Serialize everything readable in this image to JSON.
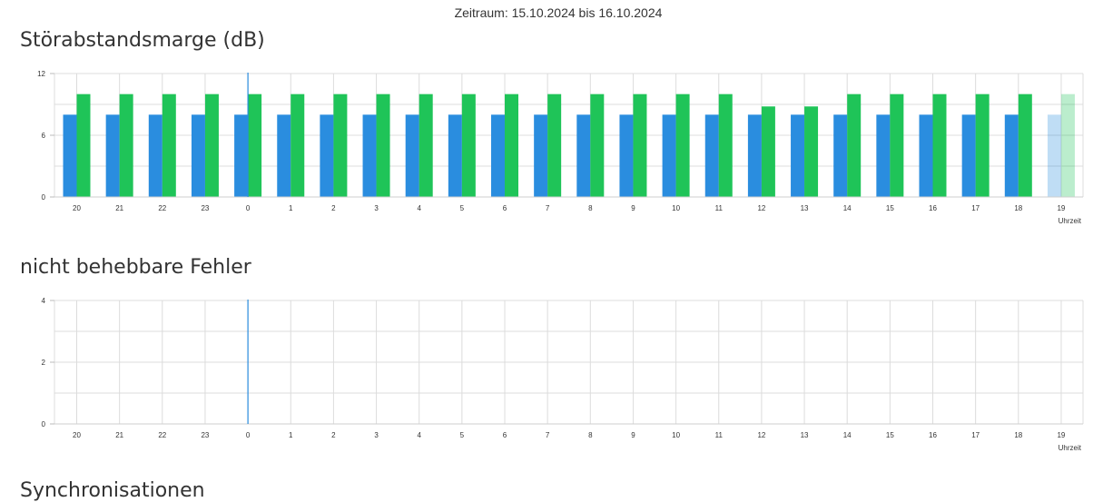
{
  "header": {
    "period": "Zeitraum: 15.10.2024 bis 16.10.2024"
  },
  "sections": [
    {
      "title": "Störabstandsmarge (dB)"
    },
    {
      "title": "nicht behebbare Fehler"
    },
    {
      "title": "Synchronisationen"
    }
  ],
  "colors": {
    "blue": "#2a8ddf",
    "green": "#1fc458",
    "grid": "#dcdcdc",
    "marker": "#2a8ddf"
  },
  "chart_data": [
    {
      "type": "bar",
      "title": "Störabstandsmarge (dB)",
      "xlabel": "Uhrzeit",
      "ylabel": "",
      "ylim": [
        0,
        12
      ],
      "yticks": [
        0,
        6,
        12
      ],
      "grid": true,
      "categories": [
        "20",
        "21",
        "22",
        "23",
        "0",
        "1",
        "2",
        "3",
        "4",
        "5",
        "6",
        "7",
        "8",
        "9",
        "10",
        "11",
        "12",
        "13",
        "14",
        "15",
        "16",
        "17",
        "18",
        "19"
      ],
      "marker_category": "0",
      "faded_categories": [
        "19"
      ],
      "series": [
        {
          "color": "#2a8ddf",
          "values": [
            8,
            8,
            8,
            8,
            8,
            8,
            8,
            8,
            8,
            8,
            8,
            8,
            8,
            8,
            8,
            8,
            8,
            8,
            8,
            8,
            8,
            8,
            8,
            8
          ]
        },
        {
          "color": "#1fc458",
          "values": [
            10,
            10,
            10,
            10,
            10,
            10,
            10,
            10,
            10,
            10,
            10,
            10,
            10,
            10,
            10,
            10,
            8.8,
            8.8,
            10,
            10,
            10,
            10,
            10,
            10
          ]
        }
      ]
    },
    {
      "type": "bar",
      "title": "nicht behebbare Fehler",
      "xlabel": "Uhrzeit",
      "ylabel": "",
      "ylim": [
        0,
        4
      ],
      "yticks": [
        0,
        2,
        4
      ],
      "grid": true,
      "categories": [
        "20",
        "21",
        "22",
        "23",
        "0",
        "1",
        "2",
        "3",
        "4",
        "5",
        "6",
        "7",
        "8",
        "9",
        "10",
        "11",
        "12",
        "13",
        "14",
        "15",
        "16",
        "17",
        "18",
        "19"
      ],
      "marker_category": "0",
      "series": []
    }
  ]
}
